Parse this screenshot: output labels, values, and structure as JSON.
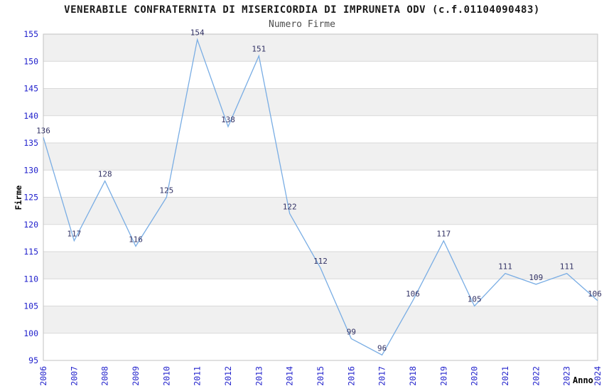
{
  "header": {
    "title": "VENERABILE CONFRATERNITA DI MISERICORDIA DI IMPRUNETA ODV (c.f.01104090483)",
    "subtitle": "Numero Firme"
  },
  "axes": {
    "y_label": "Firme",
    "x_label": "Anno"
  },
  "chart_data": {
    "type": "line",
    "title": "VENERABILE CONFRATERNITA DI MISERICORDIA DI IMPRUNETA ODV (c.f.01104090483)",
    "subtitle": "Numero Firme",
    "xlabel": "Anno",
    "ylabel": "Firme",
    "categories": [
      "2006",
      "2007",
      "2008",
      "2009",
      "2010",
      "2011",
      "2012",
      "2013",
      "2014",
      "2015",
      "2016",
      "2017",
      "2018",
      "2019",
      "2020",
      "2021",
      "2022",
      "2023",
      "2024"
    ],
    "series": [
      {
        "name": "Numero Firme",
        "values": [
          136,
          117,
          128,
          116,
          125,
          154,
          138,
          151,
          122,
          112,
          99,
          96,
          106,
          117,
          105,
          111,
          109,
          111,
          106
        ]
      }
    ],
    "ylim": [
      95,
      155
    ],
    "ytick_step": 5,
    "grid": "horizontal-bands",
    "legend": "none",
    "point_labels": true
  },
  "style": {
    "line_color": "#79ade4",
    "tick_label_color": "#2222cc",
    "point_label_color": "#333366",
    "band_color": "#f0f0f0",
    "grid_color": "#d9d9d9",
    "border_color": "#c2c2c2"
  }
}
